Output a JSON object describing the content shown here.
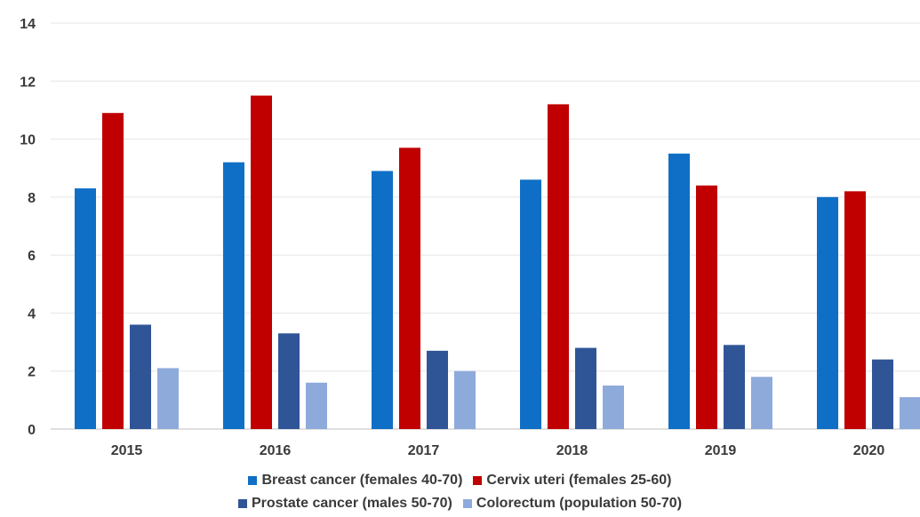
{
  "chart_data": {
    "type": "bar",
    "title": "",
    "xlabel": "",
    "ylabel": "",
    "categories": [
      "2015",
      "2016",
      "2017",
      "2018",
      "2019",
      "2020"
    ],
    "ylim": [
      0,
      14
    ],
    "yticks": [
      "0",
      "2",
      "4",
      "6",
      "8",
      "10",
      "12",
      "14"
    ],
    "grid": true,
    "legend_position": "bottom",
    "series": [
      {
        "name": "Breast cancer (females 40-70)",
        "color": "#0f6fc6",
        "values": [
          8.3,
          9.2,
          8.9,
          8.6,
          9.5,
          8.0
        ]
      },
      {
        "name": "Cervix uteri (females 25-60)",
        "color": "#c00000",
        "values": [
          10.9,
          11.5,
          9.7,
          11.2,
          8.4,
          8.2
        ]
      },
      {
        "name": "Prostate cancer (males 50-70)",
        "color": "#2f5597",
        "values": [
          3.6,
          3.3,
          2.7,
          2.8,
          2.9,
          2.4
        ]
      },
      {
        "name": "Colorectum (population 50-70)",
        "color": "#8eaadb",
        "values": [
          2.1,
          1.6,
          2.0,
          1.5,
          1.8,
          1.1
        ]
      }
    ]
  }
}
